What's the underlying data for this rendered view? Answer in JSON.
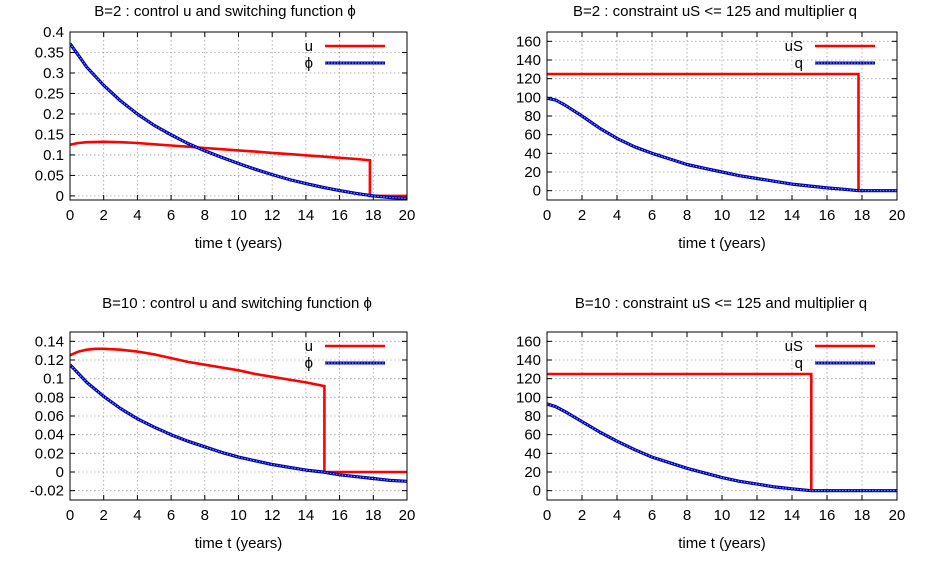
{
  "chart_data": [
    {
      "type": "line",
      "title": "B=2 : control  u  and switching function  ϕ",
      "xlabel": "time  t  (years)",
      "ylabel": "",
      "xlim": [
        0,
        20
      ],
      "ylim": [
        -0.01,
        0.4
      ],
      "xticks": [
        0,
        2,
        4,
        6,
        8,
        10,
        12,
        14,
        16,
        18,
        20
      ],
      "yticks": [
        0,
        0.05,
        0.1,
        0.15,
        0.2,
        0.25,
        0.3,
        0.35,
        0.4
      ],
      "ytick_labels": [
        "0",
        "0.05",
        "0.1",
        "0.15",
        "0.2",
        "0.25",
        "0.3",
        "0.35",
        "0.4"
      ],
      "xtick_labels": [
        "0",
        "2",
        "4",
        "6",
        "8",
        "10",
        "12",
        "14",
        "16",
        "18",
        "20"
      ],
      "grid": true,
      "legend_position": "top-right",
      "series": [
        {
          "name": "u",
          "color": "#ff0000",
          "style": "solid",
          "x": [
            0,
            0.5,
            1,
            2,
            3,
            4,
            5,
            6,
            7,
            8,
            9,
            10,
            11,
            12,
            13,
            14,
            15,
            16,
            17,
            17.8,
            17.8,
            18,
            20
          ],
          "y": [
            0.125,
            0.129,
            0.131,
            0.132,
            0.131,
            0.129,
            0.126,
            0.123,
            0.12,
            0.117,
            0.114,
            0.111,
            0.108,
            0.105,
            0.102,
            0.099,
            0.096,
            0.093,
            0.09,
            0.087,
            0,
            0,
            0
          ]
        },
        {
          "name": "ϕ",
          "color": "#0000ff",
          "style": "dotted",
          "x": [
            0,
            1,
            2,
            3,
            4,
            5,
            6,
            7,
            8,
            9,
            10,
            11,
            12,
            13,
            14,
            15,
            16,
            17,
            18,
            19,
            20
          ],
          "y": [
            0.372,
            0.314,
            0.27,
            0.232,
            0.2,
            0.172,
            0.149,
            0.128,
            0.11,
            0.094,
            0.079,
            0.065,
            0.052,
            0.04,
            0.03,
            0.021,
            0.013,
            0.006,
            0,
            -0.004,
            -0.006
          ]
        }
      ]
    },
    {
      "type": "line",
      "title": "B=2 : constraint  uS <= 125  and multiplier  q",
      "xlabel": "time  t  (years)",
      "ylabel": "",
      "xlim": [
        0,
        20
      ],
      "ylim": [
        -10,
        170
      ],
      "xticks": [
        0,
        2,
        4,
        6,
        8,
        10,
        12,
        14,
        16,
        18,
        20
      ],
      "yticks": [
        0,
        20,
        40,
        60,
        80,
        100,
        120,
        140,
        160
      ],
      "ytick_labels": [
        "0",
        "20",
        "40",
        "60",
        "80",
        "100",
        "120",
        "140",
        "160"
      ],
      "xtick_labels": [
        "0",
        "2",
        "4",
        "6",
        "8",
        "10",
        "12",
        "14",
        "16",
        "18",
        "20"
      ],
      "grid": true,
      "legend_position": "top-right",
      "series": [
        {
          "name": "uS",
          "color": "#ff0000",
          "style": "solid",
          "x": [
            0,
            17.8,
            17.8,
            20
          ],
          "y": [
            125,
            125,
            0,
            0
          ]
        },
        {
          "name": "q",
          "color": "#0000ff",
          "style": "dotted",
          "x": [
            0,
            0.5,
            1,
            2,
            3,
            4,
            5,
            6,
            7,
            8,
            9,
            10,
            11,
            12,
            13,
            14,
            15,
            16,
            17,
            17.8,
            18,
            20
          ],
          "y": [
            99,
            97,
            92,
            80,
            67,
            56,
            47,
            40,
            34,
            28,
            24,
            20,
            16,
            13,
            10,
            7,
            5,
            3,
            1.5,
            0,
            0,
            0
          ]
        }
      ]
    },
    {
      "type": "line",
      "title": "B=10 : control  u  and switching function  ϕ",
      "xlabel": "time  t  (years)",
      "ylabel": "",
      "xlim": [
        0,
        20
      ],
      "ylim": [
        -0.03,
        0.15
      ],
      "xticks": [
        0,
        2,
        4,
        6,
        8,
        10,
        12,
        14,
        16,
        18,
        20
      ],
      "yticks": [
        -0.02,
        0,
        0.02,
        0.04,
        0.06,
        0.08,
        0.1,
        0.12,
        0.14
      ],
      "ytick_labels": [
        "-0.02",
        "0",
        "0.02",
        "0.04",
        "0.06",
        "0.08",
        "0.1",
        "0.12",
        "0.14"
      ],
      "xtick_labels": [
        "0",
        "2",
        "4",
        "6",
        "8",
        "10",
        "12",
        "14",
        "16",
        "18",
        "20"
      ],
      "grid": true,
      "legend_position": "top-right",
      "series": [
        {
          "name": "u",
          "color": "#ff0000",
          "style": "solid",
          "x": [
            0,
            0.5,
            1,
            1.5,
            2,
            3,
            4,
            5,
            6,
            7,
            8,
            9,
            10,
            11,
            12,
            13,
            14,
            15.1,
            15.1,
            16,
            20
          ],
          "y": [
            0.125,
            0.129,
            0.131,
            0.132,
            0.132,
            0.131,
            0.129,
            0.126,
            0.122,
            0.118,
            0.115,
            0.112,
            0.109,
            0.105,
            0.102,
            0.099,
            0.096,
            0.092,
            0,
            0,
            0
          ]
        },
        {
          "name": "ϕ",
          "color": "#0000ff",
          "style": "dotted",
          "x": [
            0,
            1,
            2,
            3,
            4,
            5,
            6,
            7,
            8,
            9,
            10,
            11,
            12,
            13,
            14,
            15,
            16,
            17,
            18,
            19,
            20
          ],
          "y": [
            0.115,
            0.096,
            0.081,
            0.068,
            0.057,
            0.048,
            0.04,
            0.033,
            0.027,
            0.021,
            0.016,
            0.012,
            0.008,
            0.005,
            0.002,
            0,
            -0.003,
            -0.005,
            -0.007,
            -0.009,
            -0.01
          ]
        }
      ]
    },
    {
      "type": "line",
      "title": "B=10 : constraint  uS <= 125  and multiplier  q",
      "xlabel": "time  t  (years)",
      "ylabel": "",
      "xlim": [
        0,
        20
      ],
      "ylim": [
        -10,
        170
      ],
      "xticks": [
        0,
        2,
        4,
        6,
        8,
        10,
        12,
        14,
        16,
        18,
        20
      ],
      "yticks": [
        0,
        20,
        40,
        60,
        80,
        100,
        120,
        140,
        160
      ],
      "ytick_labels": [
        "0",
        "20",
        "40",
        "60",
        "80",
        "100",
        "120",
        "140",
        "160"
      ],
      "xtick_labels": [
        "0",
        "2",
        "4",
        "6",
        "8",
        "10",
        "12",
        "14",
        "16",
        "18",
        "20"
      ],
      "grid": true,
      "legend_position": "top-right",
      "series": [
        {
          "name": "uS",
          "color": "#ff0000",
          "style": "solid",
          "x": [
            0,
            15.1,
            15.1,
            20
          ],
          "y": [
            125,
            125,
            0,
            0
          ]
        },
        {
          "name": "q",
          "color": "#0000ff",
          "style": "dotted",
          "x": [
            0,
            0.5,
            1,
            2,
            3,
            4,
            5,
            6,
            7,
            8,
            9,
            10,
            11,
            12,
            13,
            14,
            15.1,
            16,
            20
          ],
          "y": [
            93,
            90,
            85,
            74,
            63,
            53,
            44,
            36,
            30,
            24,
            19,
            14,
            10,
            7,
            4,
            2,
            0,
            0,
            0
          ]
        }
      ]
    }
  ]
}
